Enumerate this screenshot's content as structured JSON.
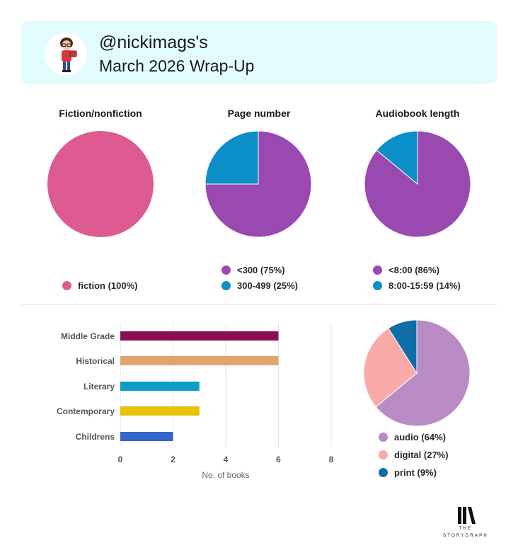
{
  "header": {
    "username": "@nickimags's",
    "subtitle": "March 2026 Wrap-Up"
  },
  "pies": {
    "fiction": {
      "title": "Fiction/nonfiction",
      "legend": [
        {
          "label": "fiction (100%)",
          "color": "#de5b91"
        }
      ]
    },
    "pages": {
      "title": "Page number",
      "legend": [
        {
          "label": "<300 (75%)",
          "color": "#9a49b1"
        },
        {
          "label": "300-499 (25%)",
          "color": "#0a8fc8"
        }
      ]
    },
    "audio": {
      "title": "Audiobook length",
      "legend": [
        {
          "label": "<8:00 (86%)",
          "color": "#9a49b1"
        },
        {
          "label": "8:00-15:59 (14%)",
          "color": "#0a8fc8"
        }
      ]
    },
    "format": {
      "title": "",
      "legend": [
        {
          "label": "audio (64%)",
          "color": "#b98bc5"
        },
        {
          "label": "digital (27%)",
          "color": "#f9aaa8"
        },
        {
          "label": "print (9%)",
          "color": "#0f6ea8"
        }
      ]
    }
  },
  "chart_data": [
    {
      "type": "pie",
      "title": "Fiction/nonfiction",
      "categories": [
        "fiction"
      ],
      "values": [
        100
      ],
      "colors": [
        "#de5b91"
      ]
    },
    {
      "type": "pie",
      "title": "Page number",
      "categories": [
        "<300",
        "300-499"
      ],
      "values": [
        75,
        25
      ],
      "colors": [
        "#9a49b1",
        "#0a8fc8"
      ]
    },
    {
      "type": "pie",
      "title": "Audiobook length",
      "categories": [
        "<8:00",
        "8:00-15:59"
      ],
      "values": [
        86,
        14
      ],
      "colors": [
        "#9a49b1",
        "#0a8fc8"
      ]
    },
    {
      "type": "bar",
      "orientation": "horizontal",
      "categories": [
        "Middle Grade",
        "Historical",
        "Literary",
        "Contemporary",
        "Childrens"
      ],
      "values": [
        6,
        6,
        3,
        3,
        2
      ],
      "colors": [
        "#8a0f4f",
        "#e1a46d",
        "#0c9ec5",
        "#e6c200",
        "#3566cc"
      ],
      "xlabel": "No. of books",
      "ylabel": "",
      "xlim": [
        0,
        8
      ],
      "xticks": [
        "0",
        "2",
        "4",
        "6",
        "8"
      ],
      "grid": true
    },
    {
      "type": "pie",
      "title": "",
      "categories": [
        "audio",
        "digital",
        "print"
      ],
      "values": [
        64,
        27,
        9
      ],
      "colors": [
        "#b98bc5",
        "#f9aaa8",
        "#0f6ea8"
      ]
    }
  ],
  "branding": {
    "line1": "THE",
    "line2": "STORYGRAPH"
  }
}
